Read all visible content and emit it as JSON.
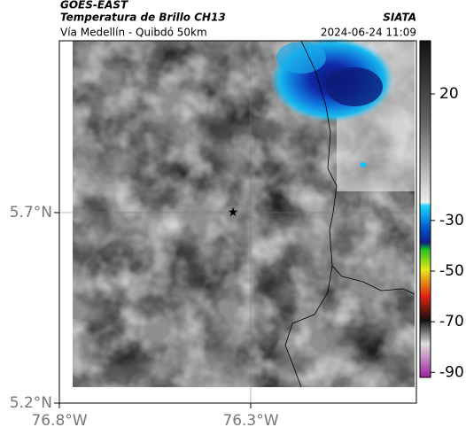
{
  "header": {
    "title": "GOES-EAST",
    "subtitle": "Temperatura de Brillo CH13",
    "region": "Vía Medellín - Quibdó 50km",
    "source": "SIATA",
    "datetime": "2024-06-24 11:09"
  },
  "map": {
    "latlim": [
      5.2,
      6.151
    ],
    "lonlim": [
      -76.8,
      -75.867
    ],
    "lat_ticks": [
      {
        "value": 5.7,
        "label": "5.7°N"
      },
      {
        "value": 5.2,
        "label": "5.2°N"
      }
    ],
    "lon_ticks": [
      {
        "value": -76.8,
        "label": "76.8°W"
      },
      {
        "value": -76.3,
        "label": "76.3°W"
      }
    ]
  },
  "colorbar": {
    "lim": [
      41,
      -92
    ],
    "ticks": [
      20,
      -30,
      -50,
      -70,
      -90
    ]
  }
}
